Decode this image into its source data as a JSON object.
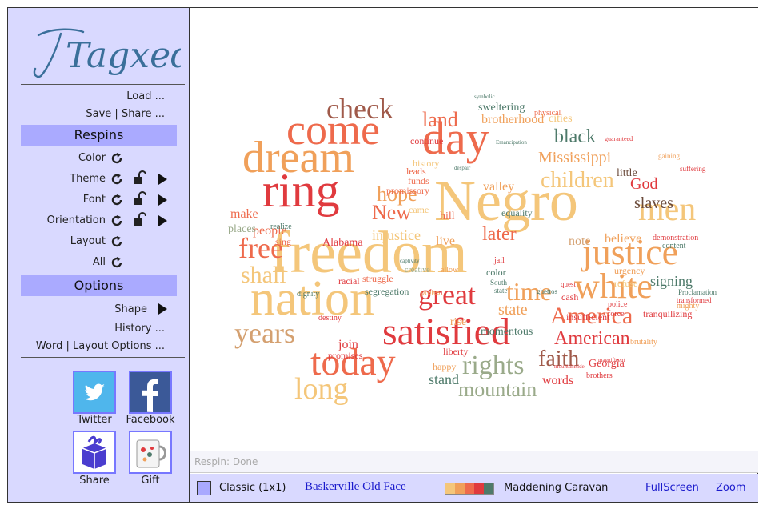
{
  "app": {
    "logo_text": "Tagxedo"
  },
  "menu": {
    "load": "Load ...",
    "save_share": "Save | Share ..."
  },
  "respins": {
    "header": "Respins",
    "items": [
      {
        "label": "Color"
      },
      {
        "label": "Theme"
      },
      {
        "label": "Font"
      },
      {
        "label": "Orientation"
      },
      {
        "label": "Layout"
      },
      {
        "label": "All"
      }
    ]
  },
  "options": {
    "header": "Options",
    "shape": "Shape",
    "history": "History ...",
    "word_layout": "Word | Layout Options ..."
  },
  "share": {
    "twitter": "Twitter",
    "facebook": "Facebook",
    "share": "Share",
    "gift": "Gift"
  },
  "status": {
    "text": "Respin: Done"
  },
  "bottombar": {
    "theme_label": "Classic (1x1)",
    "font_name": "Baskerville Old Face",
    "palette_name": "Maddening Caravan",
    "palette_colors": [
      "#f4c67a",
      "#f0a05a",
      "#ee6a4c",
      "#e03a3e",
      "#4e7a6a"
    ],
    "fullscreen": "FullScreen",
    "zoom": "Zoom"
  },
  "wordcloud": {
    "words": [
      {
        "text": "freedom",
        "color": "#f4c67a"
      },
      {
        "text": "Negro",
        "color": "#f4c67a"
      },
      {
        "text": "nation",
        "color": "#f4c67a"
      },
      {
        "text": "ring",
        "color": "#e03a3e"
      },
      {
        "text": "dream",
        "color": "#f0a05a"
      },
      {
        "text": "come",
        "color": "#ee6a4c"
      },
      {
        "text": "day",
        "color": "#ee6a4c"
      },
      {
        "text": "satisfied",
        "color": "#e03a3e"
      },
      {
        "text": "today",
        "color": "#ee6a4c"
      },
      {
        "text": "justice",
        "color": "#f0a05a"
      },
      {
        "text": "white",
        "color": "#f0a05a"
      },
      {
        "text": "men",
        "color": "#f4c67a"
      },
      {
        "text": "years",
        "color": "#d4a070"
      },
      {
        "text": "long",
        "color": "#f4c67a"
      },
      {
        "text": "free",
        "color": "#ee6a4c"
      },
      {
        "text": "check",
        "color": "#a05a4a"
      },
      {
        "text": "great",
        "color": "#e03a3e"
      },
      {
        "text": "time",
        "color": "#f0a05a"
      },
      {
        "text": "rights",
        "color": "#9aaa8a"
      },
      {
        "text": "America",
        "color": "#ee6a4c"
      },
      {
        "text": "American",
        "color": "#e03a3e"
      },
      {
        "text": "children",
        "color": "#f4c67a"
      },
      {
        "text": "faith",
        "color": "#a05a4a"
      },
      {
        "text": "mountain",
        "color": "#9aaa8a"
      },
      {
        "text": "hope",
        "color": "#f0a05a"
      },
      {
        "text": "New",
        "color": "#ee6a4c"
      },
      {
        "text": "shall",
        "color": "#f4c67a"
      },
      {
        "text": "black",
        "color": "#4e7a6a"
      },
      {
        "text": "land",
        "color": "#ee6a4c"
      },
      {
        "text": "later",
        "color": "#ee6a4c"
      },
      {
        "text": "God",
        "color": "#e03a3e"
      },
      {
        "text": "slaves",
        "color": "#6a4a3a"
      },
      {
        "text": "Mississippi",
        "color": "#f0a05a"
      },
      {
        "text": "state",
        "color": "#f0a05a"
      },
      {
        "text": "signing",
        "color": "#4e7a6a"
      },
      {
        "text": "injustice",
        "color": "#f4c67a"
      },
      {
        "text": "stand",
        "color": "#4e7a6a"
      },
      {
        "text": "words",
        "color": "#e03a3e"
      },
      {
        "text": "make",
        "color": "#ee6a4c"
      },
      {
        "text": "people",
        "color": "#ee6a4c"
      },
      {
        "text": "places",
        "color": "#9aaa8a"
      },
      {
        "text": "live",
        "color": "#f0a05a"
      },
      {
        "text": "note",
        "color": "#d4a070"
      },
      {
        "text": "believe",
        "color": "#f0a05a"
      },
      {
        "text": "join",
        "color": "#e03a3e"
      },
      {
        "text": "valley",
        "color": "#f0a05a"
      },
      {
        "text": "brotherhood",
        "color": "#f0a05a"
      },
      {
        "text": "sweltering",
        "color": "#4e7a6a"
      },
      {
        "text": "momentous",
        "color": "#4e7a6a"
      },
      {
        "text": "Alabama",
        "color": "#e03a3e"
      },
      {
        "text": "rise",
        "color": "#f0a05a"
      },
      {
        "text": "Georgia",
        "color": "#e03a3e"
      },
      {
        "text": "cities",
        "color": "#f4c67a"
      },
      {
        "text": "promissory",
        "color": "#ee6a4c"
      },
      {
        "text": "segregation",
        "color": "#4e7a6a"
      },
      {
        "text": "urgency",
        "color": "#f0a05a"
      },
      {
        "text": "refuse",
        "color": "#f4c67a"
      },
      {
        "text": "happy",
        "color": "#f0a05a"
      },
      {
        "text": "liberty",
        "color": "#e03a3e"
      },
      {
        "text": "tranquilizing",
        "color": "#e03a3e"
      },
      {
        "text": "insufficient",
        "color": "#e03a3e"
      },
      {
        "text": "struggle",
        "color": "#ee6a4c"
      },
      {
        "text": "hill",
        "color": "#ee6a4c"
      },
      {
        "text": "came",
        "color": "#f4c67a"
      },
      {
        "text": "history",
        "color": "#f4c67a"
      },
      {
        "text": "little",
        "color": "#6a4a3a"
      },
      {
        "text": "funds",
        "color": "#ee6a4c"
      },
      {
        "text": "leads",
        "color": "#ee6a4c"
      },
      {
        "text": "continue",
        "color": "#e03a3e"
      },
      {
        "text": "equality",
        "color": "#4e7a6a"
      },
      {
        "text": "sing",
        "color": "#ee6a4c"
      },
      {
        "text": "racial",
        "color": "#e03a3e"
      },
      {
        "text": "promises",
        "color": "#e03a3e"
      },
      {
        "text": "color",
        "color": "#4e7a6a"
      },
      {
        "text": "jail",
        "color": "#e03a3e"
      },
      {
        "text": "cash",
        "color": "#e03a3e"
      },
      {
        "text": "brothers",
        "color": "#e03a3e"
      },
      {
        "text": "physical",
        "color": "#ee6a4c"
      },
      {
        "text": "realize",
        "color": "#4e7a6a"
      },
      {
        "text": "content",
        "color": "#4e7a6a"
      },
      {
        "text": "demonstration",
        "color": "#e03a3e"
      },
      {
        "text": "mighty",
        "color": "#f0a05a"
      },
      {
        "text": "force",
        "color": "#e03a3e"
      },
      {
        "text": "police",
        "color": "#e03a3e"
      },
      {
        "text": "brutality",
        "color": "#f0a05a"
      },
      {
        "text": "South",
        "color": "#4e7a6a"
      },
      {
        "text": "state",
        "color": "#4e7a6a"
      },
      {
        "text": "protest",
        "color": "#f0a05a"
      },
      {
        "text": "allow",
        "color": "#f0a05a"
      },
      {
        "text": "creative",
        "color": "#9aaa8a"
      },
      {
        "text": "dignity",
        "color": "#4e7a6a"
      },
      {
        "text": "destiny",
        "color": "#e03a3e"
      },
      {
        "text": "quest",
        "color": "#e03a3e"
      },
      {
        "text": "ghettos",
        "color": "#4e7a6a"
      },
      {
        "text": "Proclamation",
        "color": "#4e7a6a"
      },
      {
        "text": "transformed",
        "color": "#e03a3e"
      },
      {
        "text": "suffering",
        "color": "#e03a3e"
      },
      {
        "text": "gaining",
        "color": "#f0a05a"
      },
      {
        "text": "guaranteed",
        "color": "#e03a3e"
      },
      {
        "text": "symbolic",
        "color": "#4e7a6a"
      },
      {
        "text": "Emancipation",
        "color": "#4e7a6a"
      },
      {
        "text": "despair",
        "color": "#4e7a6a"
      },
      {
        "text": "captivity",
        "color": "#4e7a6a"
      },
      {
        "text": "magnificent",
        "color": "#e03a3e"
      },
      {
        "text": "mountainside",
        "color": "#e03a3e"
      }
    ]
  }
}
